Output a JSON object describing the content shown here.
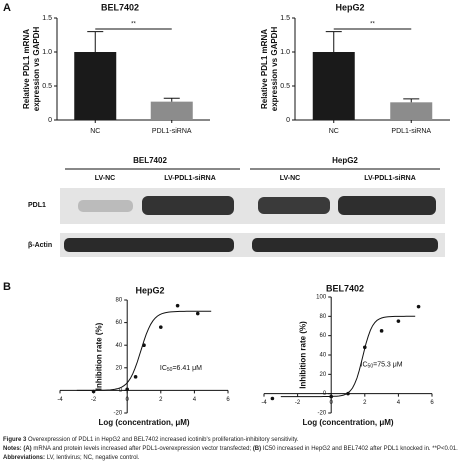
{
  "panel_labels": [
    "A",
    "B"
  ],
  "chart_data": [
    {
      "type": "bar",
      "title": "BEL7402",
      "ylabel": [
        "Relative PDL1 mRNA",
        "expression vs GAPDH"
      ],
      "categories": [
        "NC",
        "PDL1-siRNA"
      ],
      "values": [
        1.0,
        0.27
      ],
      "errors": [
        0.3,
        0.05
      ],
      "colors": [
        "#1a1a1a",
        "#8c8c8c"
      ],
      "significance": "**",
      "ylim": [
        0,
        1.5
      ],
      "yticks": [
        0,
        {
          "value": 0.5,
          "label": "0.5"
        },
        {
          "value": 1,
          "label": "1.0"
        },
        {
          "value": 1.5,
          "label": "1.5"
        }
      ]
    },
    {
      "type": "bar",
      "title": "HepG2",
      "ylabel": [
        "Relative PDL1 mRNA",
        "expression vs GAPDH"
      ],
      "categories": [
        "NC",
        "PDL1-siRNA"
      ],
      "values": [
        1.0,
        0.26
      ],
      "errors": [
        0.3,
        0.05
      ],
      "colors": [
        "#1a1a1a",
        "#8c8c8c"
      ],
      "significance": "**",
      "ylim": [
        0,
        1.5
      ],
      "yticks": [
        0,
        {
          "value": 0.5,
          "label": "0.5"
        },
        {
          "value": 1,
          "label": "1.0"
        },
        {
          "value": 1.5,
          "label": "1.5"
        }
      ]
    },
    {
      "type": "scatter",
      "title": "HepG2",
      "xlabel": "Log (concentration, μM)",
      "ylabel": "Inhibition rate (%)",
      "x": [
        -2,
        0,
        0.5,
        1,
        2,
        3,
        4.2
      ],
      "values": [
        -1,
        1,
        12,
        40,
        56,
        75,
        68
      ],
      "color": "#111",
      "fit": {
        "bottom": 0,
        "top": 70,
        "logIC50": 0.81,
        "hill": 1.2
      },
      "annotation": [
        "IC",
        "50",
        "=6.41 μM"
      ],
      "xlim": [
        -4,
        6
      ],
      "xticks": [
        -4,
        -2,
        0,
        2,
        4,
        6
      ],
      "ylim": [
        -20,
        80
      ],
      "yticks": [
        -20,
        0,
        20,
        40,
        60,
        80
      ]
    },
    {
      "type": "scatter",
      "title": "BEL7402",
      "xlabel": "Log (concentration, μM)",
      "ylabel": "Inhibition rate (%)",
      "x": [
        -3.5,
        0,
        1,
        2,
        3,
        4,
        5.2
      ],
      "values": [
        -5,
        -3,
        0,
        48,
        65,
        75,
        90
      ],
      "color": "#111",
      "fit": {
        "bottom": -3,
        "top": 80,
        "logIC50": 1.88,
        "hill": 1.5
      },
      "annotation": [
        "IC",
        "50",
        "=75.3 μM"
      ],
      "xlim": [
        -4,
        6
      ],
      "xticks": [
        -4,
        -2,
        0,
        2,
        4,
        6
      ],
      "ylim": [
        -20,
        100
      ],
      "yticks": [
        -20,
        0,
        20,
        40,
        60,
        80,
        100
      ]
    }
  ],
  "blot": {
    "groups": [
      "BEL7402",
      "HepG2"
    ],
    "lanes": [
      "LV-NC",
      "LV-PDL1-siRNA",
      "LV-NC",
      "LV-PDL1-siRNA"
    ],
    "rows": [
      "PDL1",
      "β-Actin"
    ]
  },
  "caption": {
    "figure": "Figure 3",
    "figure_text": "Overexpression of PDL1 in HepG2 and BEL7402 increased icotinib's proliferation-inhibitory sensitivity.",
    "notes": "Notes:",
    "a": "(A)",
    "a_text": "mRNA and protein levels increased after PDL1-overexpression vector transfected;",
    "b": "(B)",
    "b_text": "IC50 increased in HepG2 and BEL7402 after PDL1 knocked in. **P<0.01.",
    "abbr": "Abbreviations:",
    "abbr_text": "LV, lentivirus; NC, negative control."
  }
}
